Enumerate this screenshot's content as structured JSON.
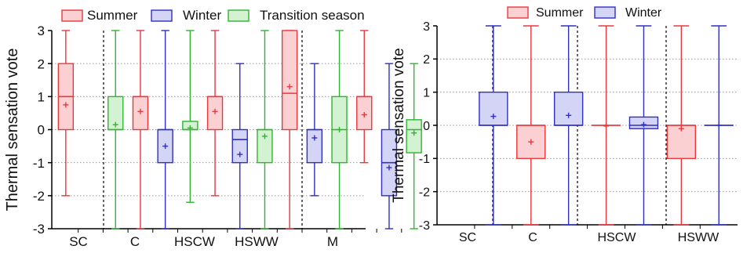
{
  "colors": {
    "summer_stroke": "#e8383d",
    "summer_fill": "#fbd0d2",
    "winter_stroke": "#2f2fc2",
    "winter_fill": "#d4d4f6",
    "transition_stroke": "#2fb52f",
    "transition_fill": "#d2f2d2",
    "text": "#111111",
    "axis": "#000000"
  },
  "chart_data": [
    {
      "type": "box",
      "ylabel": "Thermal sensation vote",
      "xlabel": "",
      "ylim": [
        -3,
        3
      ],
      "yticks": [
        -3,
        -2,
        -1,
        0,
        1,
        2,
        3
      ],
      "grid": "horizontal dotted",
      "legend_position": "top",
      "legend": [
        "Summer",
        "Winter",
        "Transition season"
      ],
      "groups": [
        "SC",
        "C",
        "HSCW",
        "HSWW",
        "M"
      ],
      "series": [
        {
          "name": "Summer",
          "color": "summer",
          "boxes": [
            {
              "group": "SC",
              "min": -2,
              "q1": 0,
              "median": 1,
              "q3": 2,
              "max": 3,
              "mean": 0.75
            },
            {
              "group": "C",
              "min": -3,
              "q1": 0,
              "median": 1,
              "q3": 1,
              "max": 3,
              "mean": 0.55
            },
            {
              "group": "HSCW",
              "min": -2,
              "q1": 0,
              "median": 1,
              "q3": 1,
              "max": 3,
              "mean": 0.55
            },
            {
              "group": "HSWW",
              "min": -3,
              "q1": 0,
              "median": 1.1,
              "q3": 3,
              "max": 3,
              "mean": 1.3
            },
            {
              "group": "M",
              "min": -1,
              "q1": 0,
              "median": 1,
              "q3": 1,
              "max": 3,
              "mean": 0.45
            }
          ]
        },
        {
          "name": "Winter",
          "color": "winter",
          "boxes": [
            {
              "group": "C",
              "min": -3,
              "q1": -1,
              "median": 0,
              "q3": 0,
              "max": 3,
              "mean": -0.5
            },
            {
              "group": "HSCW",
              "min": -3,
              "q1": -1,
              "median": -0.3,
              "q3": 0,
              "max": 2,
              "mean": -0.75
            },
            {
              "group": "HSWW",
              "min": -2,
              "q1": -1,
              "median": 0,
              "q3": 0,
              "max": 2,
              "mean": -0.25
            },
            {
              "group": "M",
              "min": -3,
              "q1": -2,
              "median": -1,
              "q3": 0,
              "max": 2,
              "mean": -1.15
            }
          ]
        },
        {
          "name": "Transition season",
          "color": "transition",
          "boxes": [
            {
              "group": "SC",
              "min": -3,
              "q1": 0,
              "median": 0,
              "q3": 1,
              "max": 3,
              "mean": 0.15
            },
            {
              "group": "C",
              "min": -2.2,
              "q1": 0,
              "median": 0,
              "q3": 0.25,
              "max": 3,
              "mean": 0.05
            },
            {
              "group": "HSCW",
              "min": -3,
              "q1": -1,
              "median": 0,
              "q3": 0,
              "max": 3,
              "mean": -0.2
            },
            {
              "group": "HSWW",
              "min": -3,
              "q1": -1,
              "median": 0,
              "q3": 1,
              "max": 3,
              "mean": 0
            },
            {
              "group": "M",
              "min": -3,
              "q1": -0.7,
              "median": 0,
              "q3": 0.3,
              "max": 2,
              "mean": -0.1
            }
          ]
        }
      ]
    },
    {
      "type": "box",
      "ylabel": "Thermal sensation vote",
      "xlabel": "",
      "ylim": [
        -3,
        3
      ],
      "yticks": [
        -3,
        -2,
        -1,
        0,
        1,
        2,
        3
      ],
      "grid": "horizontal dotted",
      "legend_position": "top",
      "legend": [
        "Summer",
        "Winter"
      ],
      "groups": [
        "SC",
        "C",
        "HSCW",
        "HSWW"
      ],
      "series": [
        {
          "name": "Summer",
          "color": "summer",
          "boxes": [
            {
              "group": "C",
              "min": -3,
              "q1": -1,
              "median": 0,
              "q3": 0,
              "max": 3,
              "mean": -0.5
            },
            {
              "group": "HSCW",
              "min": -3,
              "q1": 0,
              "median": 0,
              "q3": 0,
              "max": 3,
              "mean": -0.02
            },
            {
              "group": "HSWW",
              "min": -3,
              "q1": -1,
              "median": 0,
              "q3": 0,
              "max": 3,
              "mean": -0.1
            }
          ]
        },
        {
          "name": "Winter",
          "color": "winter",
          "boxes": [
            {
              "group": "SC",
              "min": -3,
              "q1": 0,
              "median": 0,
              "q3": 1,
              "max": 3,
              "mean": 0.27
            },
            {
              "group": "C",
              "min": -3,
              "q1": 0,
              "median": 0,
              "q3": 1,
              "max": 3,
              "mean": 0.3
            },
            {
              "group": "HSCW",
              "min": -3,
              "q1": -0.1,
              "median": 0,
              "q3": 0.25,
              "max": 3,
              "mean": 0.02
            },
            {
              "group": "HSWW",
              "min": -3,
              "q1": 0,
              "median": 0,
              "q3": 0,
              "max": 3,
              "mean": 0
            }
          ]
        }
      ]
    }
  ]
}
